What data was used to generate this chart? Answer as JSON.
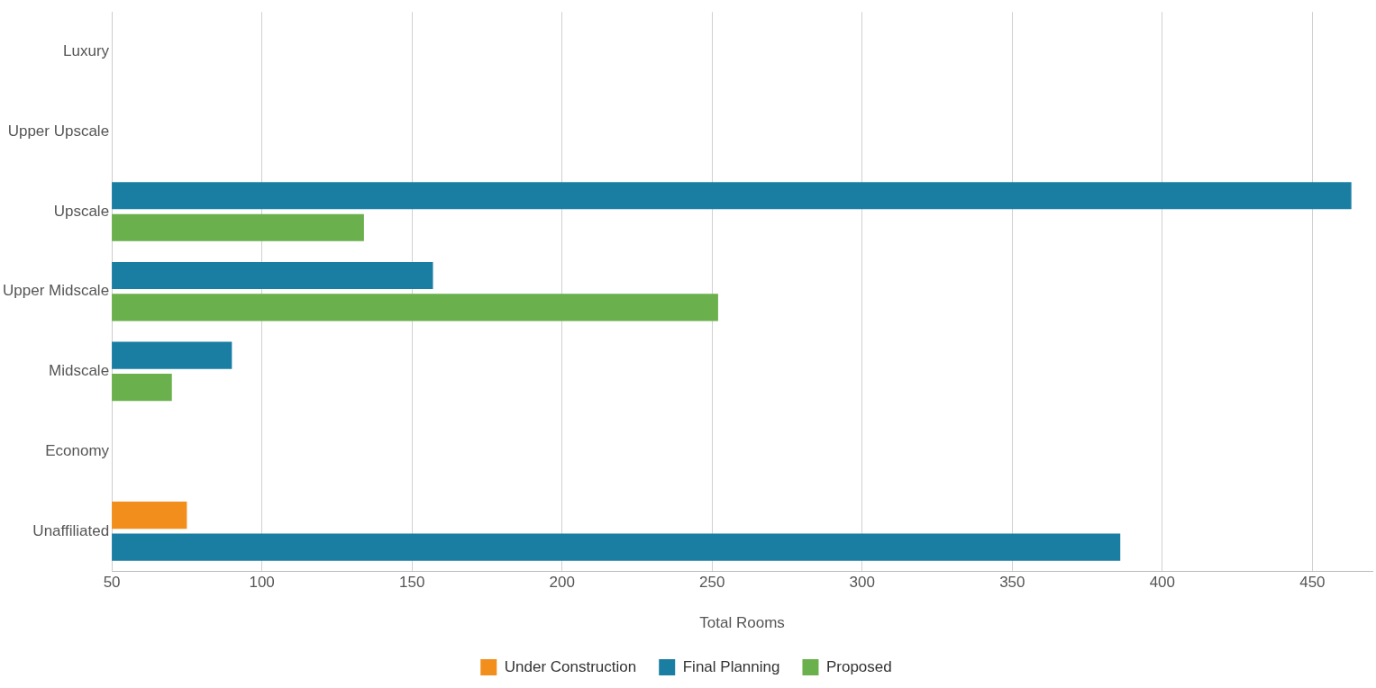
{
  "chart_data": {
    "type": "bar",
    "orientation": "horizontal",
    "xlabel": "Total Rooms",
    "categories": [
      "Luxury",
      "Upper Upscale",
      "Upscale",
      "Upper Midscale",
      "Midscale",
      "Economy",
      "Unaffiliated"
    ],
    "series": [
      {
        "name": "Under Construction",
        "color": "#f28e1c",
        "values": [
          null,
          null,
          null,
          null,
          null,
          null,
          75
        ]
      },
      {
        "name": "Final Planning",
        "color": "#1a7ea3",
        "values": [
          null,
          null,
          463,
          157,
          90,
          null,
          386
        ]
      },
      {
        "name": "Proposed",
        "color": "#6ab04c",
        "values": [
          null,
          null,
          134,
          252,
          70,
          null,
          null
        ]
      }
    ],
    "xlim": [
      50,
      470
    ],
    "xticks": [
      50,
      100,
      150,
      200,
      250,
      300,
      350,
      400,
      450
    ],
    "grid": "x",
    "legend": "bottom"
  }
}
